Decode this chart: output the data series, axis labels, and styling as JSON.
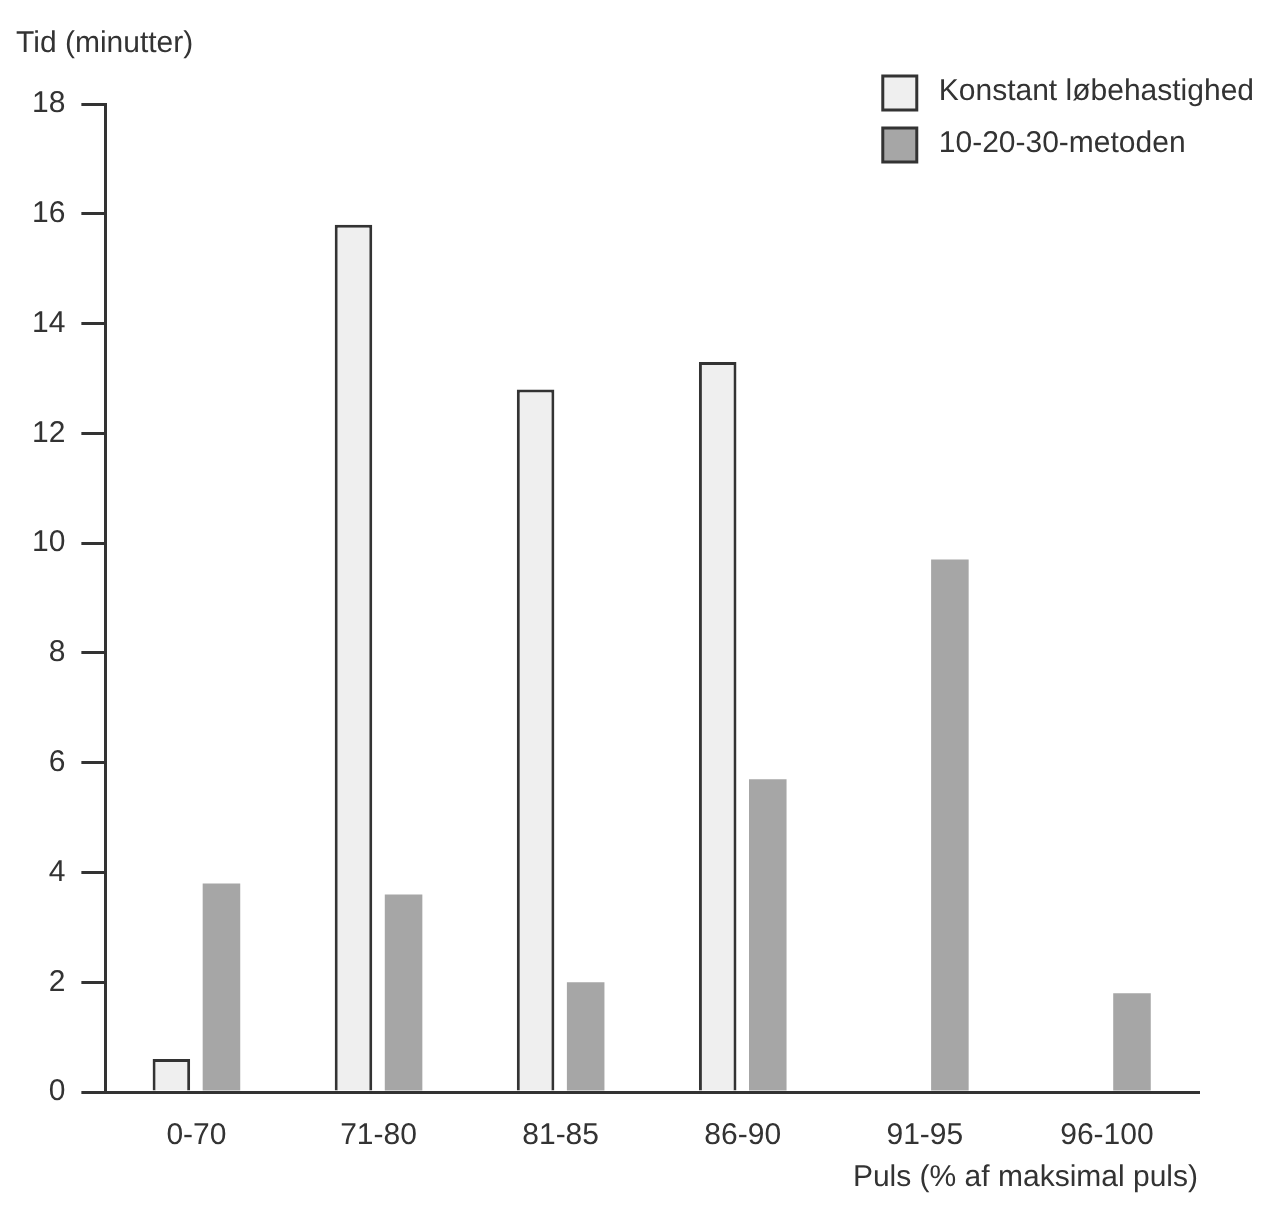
{
  "chart_data": {
    "type": "bar",
    "xlabel": "Puls (% af maksimal puls)",
    "ylabel": "Tid (minutter)",
    "categories": [
      "0-70",
      "71-80",
      "81-85",
      "86-90",
      "91-95",
      "96-100"
    ],
    "series": [
      {
        "name": "Konstant løbehastighed",
        "color": "#efefef",
        "values": [
          0.6,
          15.8,
          12.8,
          13.3,
          null,
          null
        ]
      },
      {
        "name": "10-20-30-metoden",
        "color": "#a6a6a6",
        "values": [
          3.8,
          3.6,
          2.0,
          5.7,
          9.7,
          1.8
        ]
      }
    ],
    "ylim": [
      0,
      18
    ],
    "yticks": [
      0,
      2,
      4,
      6,
      8,
      10,
      12,
      14,
      16,
      18
    ],
    "grid": false,
    "legend": "top right"
  }
}
